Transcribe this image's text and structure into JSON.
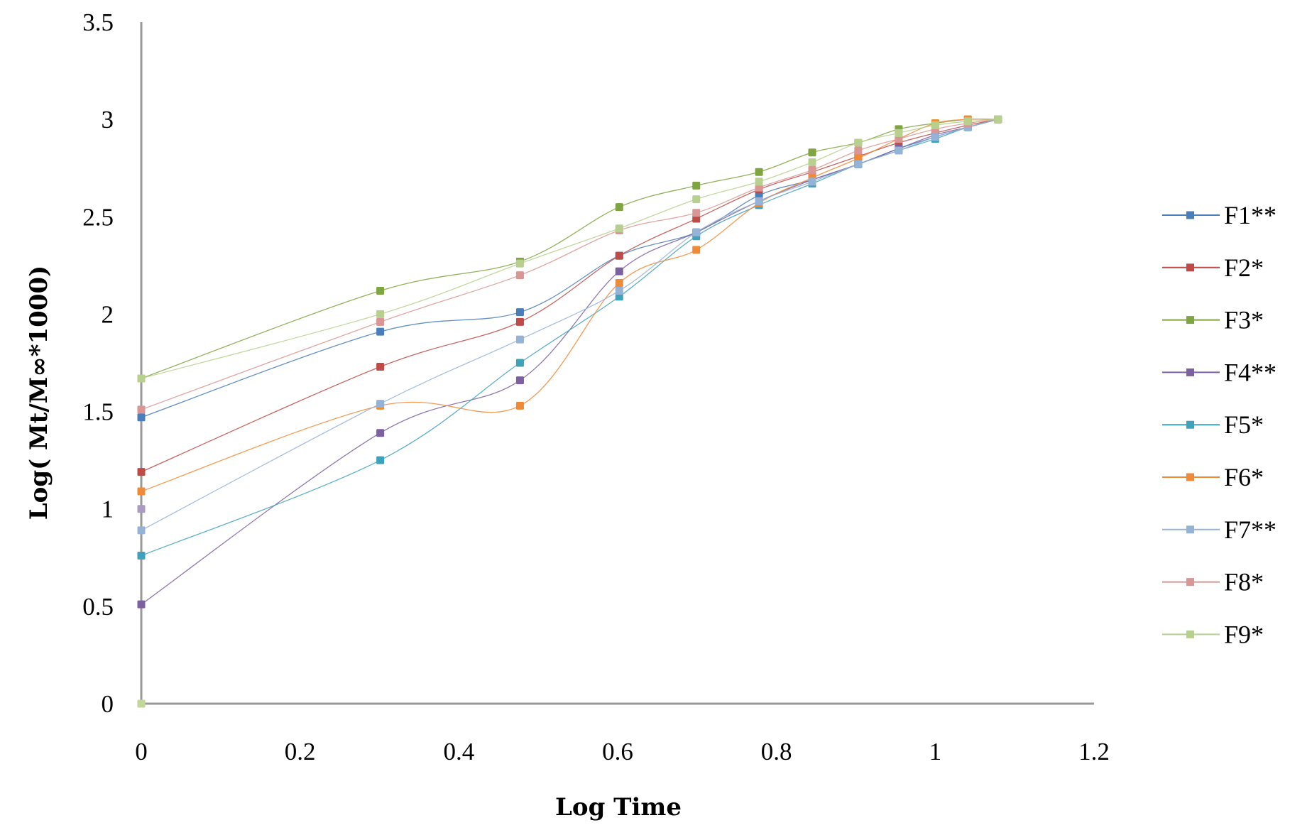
{
  "chart_data": {
    "type": "line",
    "title": "",
    "xlabel": "Log Time",
    "ylabel": "Log( Mt/M∞*1000)",
    "xlim": [
      0,
      1.2
    ],
    "ylim": [
      0,
      3.5
    ],
    "xticks": [
      "0",
      "0.2",
      "0.4",
      "0.6",
      "0.8",
      "1",
      "1.2"
    ],
    "yticks": [
      "0",
      "0.5",
      "1",
      "1.5",
      "2",
      "2.5",
      "3",
      "3.5"
    ],
    "grid": false,
    "legend_position": "right",
    "smooth": true,
    "x": [
      0,
      0.301,
      0.477,
      0.602,
      0.699,
      0.778,
      0.845,
      0.903,
      0.954,
      1.0,
      1.041,
      1.079
    ],
    "series": [
      {
        "name": "F1**",
        "color": "#4a7ebb",
        "values": [
          1.47,
          1.91,
          2.01,
          2.3,
          2.42,
          2.61,
          2.69,
          2.77,
          2.85,
          2.91,
          2.96,
          3.0
        ]
      },
      {
        "name": "F2*",
        "color": "#be4b48",
        "values": [
          1.19,
          1.73,
          1.96,
          2.3,
          2.49,
          2.64,
          2.73,
          2.81,
          2.88,
          2.93,
          2.97,
          3.0
        ]
      },
      {
        "name": "F3*",
        "color": "#7fa540",
        "values": [
          1.67,
          2.12,
          2.27,
          2.55,
          2.66,
          2.73,
          2.83,
          2.88,
          2.95,
          2.98,
          3.0,
          3.0
        ]
      },
      {
        "name": "F4**",
        "color": "#7d60a0",
        "values": [
          0.51,
          1.39,
          1.66,
          2.22,
          2.42,
          2.58,
          2.69,
          2.77,
          2.85,
          2.92,
          2.96,
          3.0
        ]
      },
      {
        "name": "F5*",
        "color": "#3fa2bd",
        "values": [
          0.76,
          1.25,
          1.75,
          2.09,
          2.4,
          2.56,
          2.67,
          2.77,
          2.84,
          2.9,
          2.96,
          3.0
        ]
      },
      {
        "name": "F6*",
        "color": "#f08a36",
        "values": [
          1.09,
          1.53,
          1.53,
          2.16,
          2.33,
          2.57,
          2.7,
          2.8,
          2.9,
          2.98,
          3.0,
          3.0
        ]
      },
      {
        "name": "F7**",
        "color": "#95b3d7",
        "values": [
          0.89,
          1.54,
          1.87,
          2.12,
          2.42,
          2.58,
          2.68,
          2.77,
          2.84,
          2.91,
          2.96,
          3.0
        ]
      },
      {
        "name": "F8*",
        "color": "#d99694",
        "values": [
          1.51,
          1.96,
          2.2,
          2.43,
          2.52,
          2.65,
          2.74,
          2.84,
          2.9,
          2.95,
          2.98,
          3.0
        ]
      },
      {
        "name": "F9*",
        "color": "#b8d08e",
        "values": [
          1.67,
          2.0,
          2.26,
          2.44,
          2.59,
          2.68,
          2.78,
          2.88,
          2.93,
          2.97,
          2.99,
          3.0
        ]
      }
    ],
    "extra_points": [
      {
        "x": 0,
        "y": 1.0,
        "color": "#a99bc4"
      },
      {
        "x": 0,
        "y": 0,
        "color": "#c3d69b"
      }
    ]
  }
}
